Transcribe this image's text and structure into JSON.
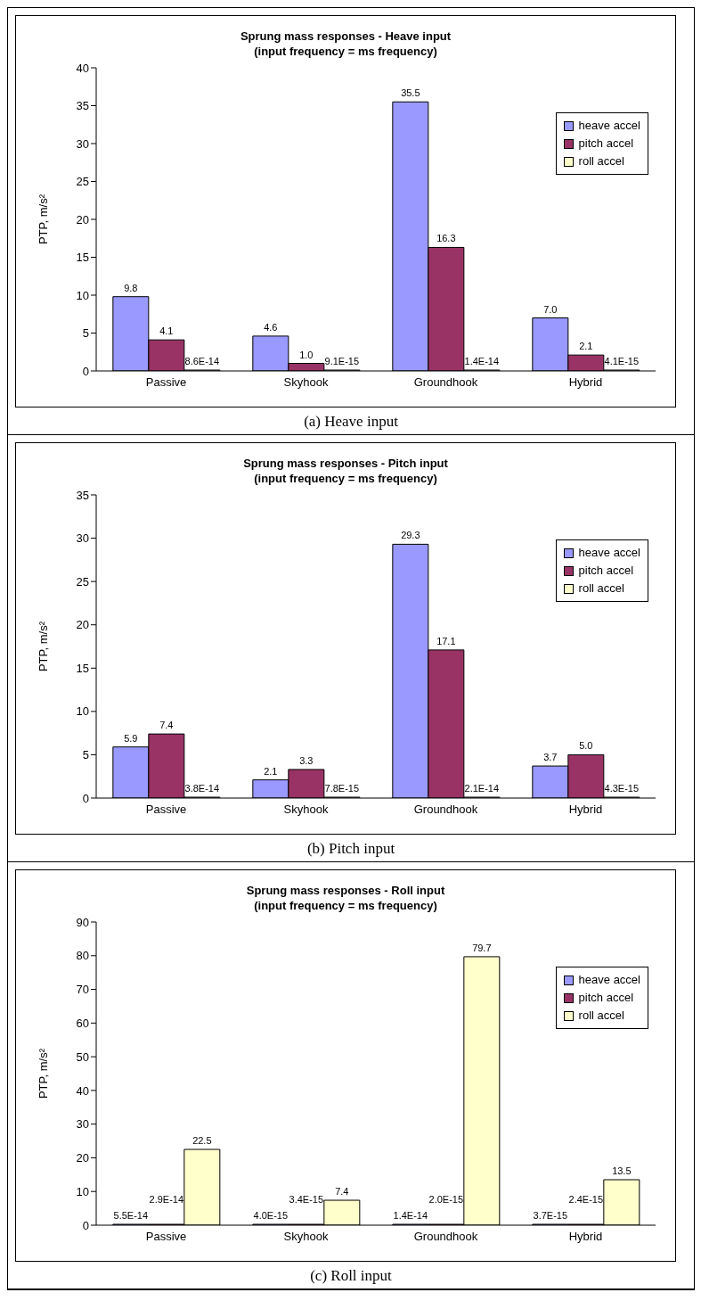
{
  "chart_data": [
    {
      "type": "bar",
      "title": "Sprung mass responses - Heave input",
      "subtitle": "(input frequency = ms frequency)",
      "ylabel": "PTP, m/s²",
      "categories": [
        "Passive",
        "Skyhook",
        "Groundhook",
        "Hybrid"
      ],
      "series": [
        {
          "name": "heave accel",
          "color": "#9999ff",
          "values": [
            9.8,
            4.6,
            35.5,
            7.0
          ],
          "value_labels": [
            "9.8",
            "4.6",
            "35.5",
            "7.0"
          ]
        },
        {
          "name": "pitch accel",
          "color": "#993366",
          "values": [
            4.1,
            1.0,
            16.3,
            2.1
          ],
          "value_labels": [
            "4.1",
            "1.0",
            "16.3",
            "2.1"
          ]
        },
        {
          "name": "roll accel",
          "color": "#ffffcc",
          "values": [
            8.6e-14,
            9.1e-15,
            1.4e-14,
            4.1e-15
          ],
          "value_labels": [
            "8.6E-14",
            "9.1E-15",
            "1.4E-14",
            "4.1E-15"
          ]
        }
      ],
      "ylim": [
        0,
        40
      ],
      "yticks": [
        0,
        5,
        10,
        15,
        20,
        25,
        30,
        35,
        40
      ],
      "grid": false,
      "legend": "top right",
      "annotations": [
        "(a) Heave input"
      ]
    },
    {
      "type": "bar",
      "title": "Sprung mass responses - Pitch input",
      "subtitle": "(input frequency = ms frequency)",
      "ylabel": "PTP, m/s²",
      "categories": [
        "Passive",
        "Skyhook",
        "Groundhook",
        "Hybrid"
      ],
      "series": [
        {
          "name": "heave accel",
          "color": "#9999ff",
          "values": [
            5.9,
            2.1,
            29.3,
            3.7
          ],
          "value_labels": [
            "5.9",
            "2.1",
            "29.3",
            "3.7"
          ]
        },
        {
          "name": "pitch accel",
          "color": "#993366",
          "values": [
            7.4,
            3.3,
            17.1,
            5.0
          ],
          "value_labels": [
            "7.4",
            "3.3",
            "17.1",
            "5.0"
          ]
        },
        {
          "name": "roll accel",
          "color": "#ffffcc",
          "values": [
            3.8e-14,
            7.8e-15,
            2.1e-14,
            4.3e-15
          ],
          "value_labels": [
            "3.8E-14",
            "7.8E-15",
            "2.1E-14",
            "4.3E-15"
          ]
        }
      ],
      "ylim": [
        0,
        35
      ],
      "yticks": [
        0,
        5,
        10,
        15,
        20,
        25,
        30,
        35
      ],
      "grid": false,
      "legend": "top right",
      "annotations": [
        "(b) Pitch input"
      ]
    },
    {
      "type": "bar",
      "title": "Sprung mass responses - Roll input",
      "subtitle": "(input frequency = ms frequency)",
      "ylabel": "PTP, m/s²",
      "categories": [
        "Passive",
        "Skyhook",
        "Groundhook",
        "Hybrid"
      ],
      "series": [
        {
          "name": "heave accel",
          "color": "#9999ff",
          "values": [
            5.5e-14,
            4e-15,
            1.4e-14,
            3.7e-15
          ],
          "value_labels": [
            "5.5E-14",
            "4.0E-15",
            "1.4E-14",
            "3.7E-15"
          ]
        },
        {
          "name": "pitch accel",
          "color": "#993366",
          "values": [
            2.9e-14,
            3.4e-15,
            2e-15,
            2.4e-15
          ],
          "value_labels": [
            "2.9E-14",
            "3.4E-15",
            "2.0E-15",
            "2.4E-15"
          ]
        },
        {
          "name": "roll accel",
          "color": "#ffffcc",
          "values": [
            22.5,
            7.4,
            79.7,
            13.5
          ],
          "value_labels": [
            "22.5",
            "7.4",
            "79.7",
            "13.5"
          ]
        }
      ],
      "ylim": [
        0,
        90
      ],
      "yticks": [
        0,
        10,
        20,
        30,
        40,
        50,
        60,
        70,
        80,
        90
      ],
      "grid": false,
      "legend": "top right",
      "annotations": [
        "(c) Roll input"
      ]
    }
  ]
}
